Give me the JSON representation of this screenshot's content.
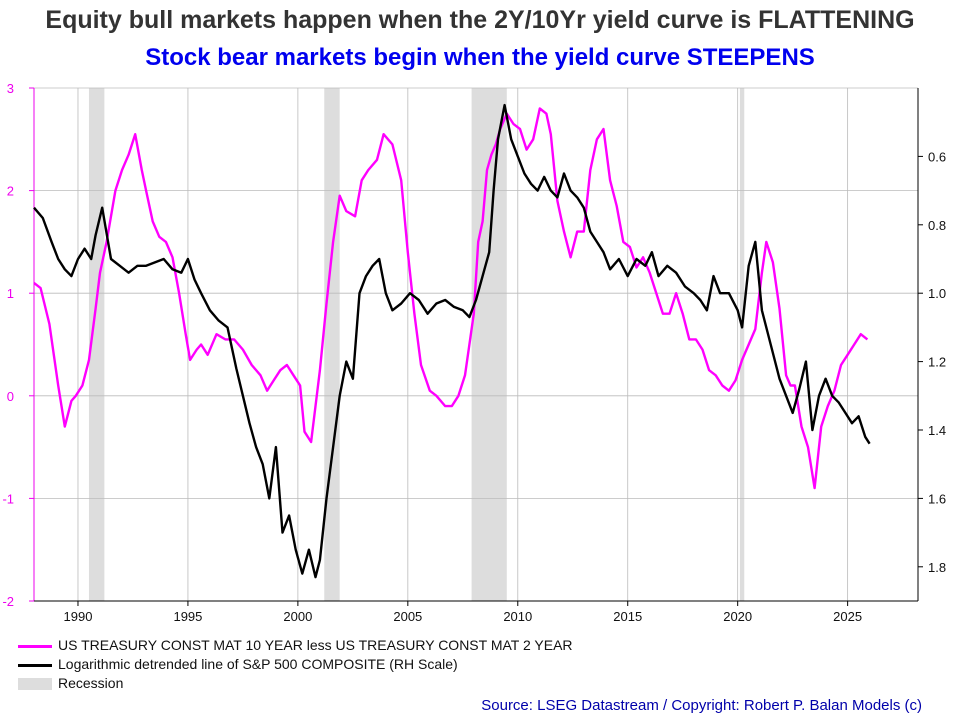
{
  "chart_data": {
    "type": "line",
    "title": "Equity bull markets happen when the 2Y/10Yr yield curve is FLATTENING",
    "subtitle": "Stock bear markets begin when the yield curve STEEPENS",
    "source": "Source: LSEG Datastream / Copyright: Robert P. Balan Models (c)",
    "x_ticks": [
      "1990",
      "1995",
      "2000",
      "2005",
      "2010",
      "2015",
      "2020",
      "2025"
    ],
    "y_left": {
      "range": [
        -2,
        3
      ],
      "ticks": [
        "3",
        "2",
        "1",
        "0",
        "-1",
        "-2"
      ],
      "color": "#ee00ee"
    },
    "y_right": {
      "range": [
        0.4,
        1.9
      ],
      "scale": "inverted",
      "ticks": [
        "0.6",
        "0.8",
        "1.0",
        "1.2",
        "1.4",
        "1.6",
        "1.8"
      ]
    },
    "recessions": [
      [
        1990.5,
        1991.2
      ],
      [
        2001.2,
        2001.9
      ],
      [
        2007.9,
        2009.5
      ],
      [
        2020.1,
        2020.3
      ]
    ],
    "series": [
      {
        "name": "US TREASURY CONST MAT 10 YEAR less US TREASURY CONST MAT 2 YEAR",
        "axis": "left",
        "color": "#ff00ff",
        "x": [
          1988.0,
          1988.3,
          1988.7,
          1989.1,
          1989.4,
          1989.7,
          1989.9,
          1990.2,
          1990.5,
          1990.8,
          1991.0,
          1991.3,
          1991.7,
          1992.0,
          1992.3,
          1992.6,
          1992.9,
          1993.1,
          1993.4,
          1993.7,
          1994.0,
          1994.3,
          1994.6,
          1994.9,
          1995.1,
          1995.4,
          1995.6,
          1995.9,
          1996.3,
          1996.7,
          1997.1,
          1997.5,
          1997.9,
          1998.3,
          1998.6,
          1998.9,
          1999.2,
          1999.5,
          1999.8,
          2000.1,
          2000.3,
          2000.6,
          2000.8,
          2001.0,
          2001.3,
          2001.6,
          2001.9,
          2002.2,
          2002.6,
          2002.9,
          2003.2,
          2003.6,
          2003.9,
          2004.3,
          2004.7,
          2005.0,
          2005.3,
          2005.6,
          2006.0,
          2006.3,
          2006.7,
          2007.0,
          2007.3,
          2007.6,
          2007.8,
          2008.0,
          2008.2,
          2008.4,
          2008.6,
          2008.8,
          2009.0,
          2009.2,
          2009.5,
          2009.8,
          2010.1,
          2010.4,
          2010.7,
          2011.0,
          2011.3,
          2011.5,
          2011.8,
          2012.1,
          2012.4,
          2012.7,
          2013.0,
          2013.3,
          2013.6,
          2013.9,
          2014.2,
          2014.5,
          2014.8,
          2015.1,
          2015.4,
          2015.7,
          2016.0,
          2016.3,
          2016.6,
          2016.9,
          2017.2,
          2017.5,
          2017.8,
          2018.1,
          2018.4,
          2018.7,
          2019.0,
          2019.3,
          2019.6,
          2019.9,
          2020.2,
          2020.5,
          2020.8,
          2021.1,
          2021.3,
          2021.6,
          2021.9,
          2022.2,
          2022.4,
          2022.6,
          2022.9,
          2023.2,
          2023.5,
          2023.8,
          2024.1,
          2024.4,
          2024.7,
          2025.0,
          2025.3,
          2025.6,
          2025.9
        ],
        "y": [
          1.1,
          1.05,
          0.7,
          0.1,
          -0.3,
          -0.05,
          0.0,
          0.1,
          0.35,
          0.85,
          1.2,
          1.5,
          2.0,
          2.2,
          2.35,
          2.55,
          2.2,
          2.0,
          1.7,
          1.55,
          1.5,
          1.35,
          1.0,
          0.6,
          0.35,
          0.45,
          0.5,
          0.4,
          0.6,
          0.55,
          0.55,
          0.45,
          0.3,
          0.2,
          0.05,
          0.15,
          0.25,
          0.3,
          0.2,
          0.1,
          -0.35,
          -0.45,
          -0.1,
          0.25,
          0.9,
          1.5,
          1.95,
          1.8,
          1.75,
          2.1,
          2.2,
          2.3,
          2.55,
          2.45,
          2.1,
          1.4,
          0.8,
          0.3,
          0.05,
          0.0,
          -0.1,
          -0.1,
          0.0,
          0.2,
          0.5,
          0.8,
          1.5,
          1.7,
          2.2,
          2.35,
          2.45,
          2.6,
          2.75,
          2.65,
          2.6,
          2.4,
          2.5,
          2.8,
          2.75,
          2.55,
          1.9,
          1.6,
          1.35,
          1.6,
          1.6,
          2.2,
          2.5,
          2.6,
          2.1,
          1.85,
          1.5,
          1.45,
          1.25,
          1.35,
          1.2,
          1.0,
          0.8,
          0.8,
          1.0,
          0.8,
          0.55,
          0.55,
          0.45,
          0.25,
          0.2,
          0.1,
          0.05,
          0.15,
          0.35,
          0.5,
          0.65,
          1.2,
          1.5,
          1.3,
          0.85,
          0.2,
          0.1,
          0.1,
          -0.3,
          -0.5,
          -0.9,
          -0.3,
          -0.1,
          0.05,
          0.3,
          0.4,
          0.5,
          0.6,
          0.55
        ]
      },
      {
        "name": "Logarithmic detrended line of S&P 500 COMPOSITE (RH Scale)",
        "axis": "right",
        "color": "#000000",
        "x": [
          1988.0,
          1988.4,
          1988.8,
          1989.1,
          1989.4,
          1989.7,
          1990.0,
          1990.3,
          1990.6,
          1990.8,
          1991.1,
          1991.5,
          1991.9,
          1992.3,
          1992.7,
          1993.1,
          1993.5,
          1993.9,
          1994.3,
          1994.7,
          1995.0,
          1995.3,
          1995.6,
          1996.0,
          1996.4,
          1996.8,
          1997.2,
          1997.5,
          1997.8,
          1998.1,
          1998.4,
          1998.7,
          1999.0,
          1999.3,
          1999.6,
          1999.9,
          2000.2,
          2000.5,
          2000.8,
          2001.0,
          2001.3,
          2001.6,
          2001.9,
          2002.2,
          2002.5,
          2002.8,
          2003.1,
          2003.4,
          2003.7,
          2004.0,
          2004.3,
          2004.7,
          2005.1,
          2005.5,
          2005.9,
          2006.3,
          2006.7,
          2007.1,
          2007.5,
          2007.8,
          2008.1,
          2008.4,
          2008.7,
          2008.9,
          2009.1,
          2009.4,
          2009.7,
          2010.0,
          2010.3,
          2010.6,
          2010.9,
          2011.2,
          2011.5,
          2011.8,
          2012.1,
          2012.4,
          2012.7,
          2013.0,
          2013.3,
          2013.6,
          2013.9,
          2014.2,
          2014.6,
          2015.0,
          2015.4,
          2015.8,
          2016.1,
          2016.4,
          2016.8,
          2017.2,
          2017.6,
          2018.0,
          2018.3,
          2018.6,
          2018.9,
          2019.2,
          2019.6,
          2020.0,
          2020.2,
          2020.5,
          2020.8,
          2021.1,
          2021.5,
          2021.9,
          2022.2,
          2022.5,
          2022.8,
          2023.1,
          2023.4,
          2023.7,
          2024.0,
          2024.3,
          2024.6,
          2024.9,
          2025.2,
          2025.5,
          2025.8,
          2026.0
        ],
        "y": [
          0.75,
          0.78,
          0.85,
          0.9,
          0.93,
          0.95,
          0.9,
          0.87,
          0.9,
          0.83,
          0.75,
          0.9,
          0.92,
          0.94,
          0.92,
          0.92,
          0.91,
          0.9,
          0.93,
          0.94,
          0.9,
          0.96,
          1.0,
          1.05,
          1.08,
          1.1,
          1.22,
          1.3,
          1.38,
          1.45,
          1.5,
          1.6,
          1.45,
          1.7,
          1.65,
          1.75,
          1.82,
          1.75,
          1.83,
          1.78,
          1.6,
          1.45,
          1.3,
          1.2,
          1.25,
          1.0,
          0.95,
          0.92,
          0.9,
          1.0,
          1.05,
          1.03,
          1.0,
          1.02,
          1.06,
          1.03,
          1.02,
          1.04,
          1.05,
          1.07,
          1.02,
          0.95,
          0.88,
          0.7,
          0.55,
          0.45,
          0.55,
          0.6,
          0.65,
          0.68,
          0.7,
          0.66,
          0.7,
          0.72,
          0.65,
          0.7,
          0.72,
          0.75,
          0.82,
          0.85,
          0.88,
          0.93,
          0.9,
          0.95,
          0.9,
          0.92,
          0.88,
          0.95,
          0.92,
          0.94,
          0.98,
          1.0,
          1.02,
          1.05,
          0.95,
          1.0,
          1.0,
          1.05,
          1.1,
          0.92,
          0.85,
          1.05,
          1.15,
          1.25,
          1.3,
          1.35,
          1.28,
          1.2,
          1.4,
          1.3,
          1.25,
          1.3,
          1.32,
          1.35,
          1.38,
          1.36,
          1.42,
          1.44
        ]
      }
    ],
    "legend": [
      {
        "label": "US TREASURY CONST MAT 10 YEAR less US TREASURY CONST MAT 2 YEAR",
        "color": "#ff00ff",
        "kind": "line"
      },
      {
        "label": "Logarithmic detrended line of S&P 500 COMPOSITE (RH Scale)",
        "color": "#000000",
        "kind": "line"
      },
      {
        "label": "Recession",
        "color": "#dddddd",
        "kind": "band"
      }
    ],
    "legend_position": "bottom-left",
    "grid": true
  }
}
